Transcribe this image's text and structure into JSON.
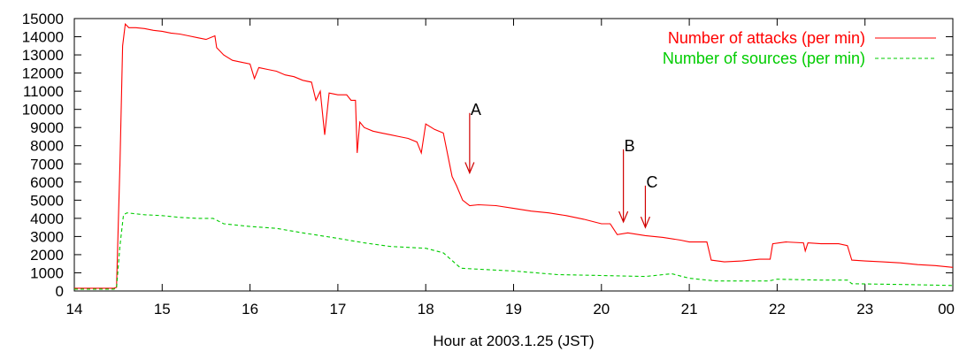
{
  "chart_data": {
    "type": "line",
    "xlabel": "Hour at 2003.1.25 (JST)",
    "x_ticks": [
      "14",
      "15",
      "16",
      "17",
      "18",
      "19",
      "20",
      "21",
      "22",
      "23",
      "00"
    ],
    "xlim": [
      14,
      24
    ],
    "ylim": [
      0,
      15000
    ],
    "y_ticks": [
      0,
      1000,
      2000,
      3000,
      4000,
      5000,
      6000,
      7000,
      8000,
      9000,
      10000,
      11000,
      12000,
      13000,
      14000,
      15000
    ],
    "grid": false,
    "legend_position": "top-right",
    "series": [
      {
        "name": "Number of attacks (per min)",
        "color": "#ff0000",
        "style": "solid",
        "points": [
          [
            14.0,
            150
          ],
          [
            14.45,
            150
          ],
          [
            14.48,
            200
          ],
          [
            14.52,
            7000
          ],
          [
            14.55,
            13500
          ],
          [
            14.58,
            14700
          ],
          [
            14.62,
            14500
          ],
          [
            14.7,
            14500
          ],
          [
            14.8,
            14450
          ],
          [
            14.9,
            14350
          ],
          [
            15.0,
            14300
          ],
          [
            15.1,
            14200
          ],
          [
            15.2,
            14150
          ],
          [
            15.3,
            14050
          ],
          [
            15.4,
            13950
          ],
          [
            15.5,
            13850
          ],
          [
            15.6,
            14050
          ],
          [
            15.62,
            13400
          ],
          [
            15.7,
            13000
          ],
          [
            15.8,
            12700
          ],
          [
            15.9,
            12600
          ],
          [
            16.0,
            12500
          ],
          [
            16.05,
            11700
          ],
          [
            16.1,
            12300
          ],
          [
            16.2,
            12200
          ],
          [
            16.3,
            12100
          ],
          [
            16.4,
            11900
          ],
          [
            16.5,
            11800
          ],
          [
            16.6,
            11600
          ],
          [
            16.7,
            11500
          ],
          [
            16.75,
            10500
          ],
          [
            16.8,
            11000
          ],
          [
            16.85,
            8600
          ],
          [
            16.9,
            10900
          ],
          [
            17.0,
            10800
          ],
          [
            17.1,
            10800
          ],
          [
            17.15,
            10500
          ],
          [
            17.2,
            10500
          ],
          [
            17.22,
            7600
          ],
          [
            17.25,
            9300
          ],
          [
            17.3,
            9000
          ],
          [
            17.4,
            8800
          ],
          [
            17.5,
            8700
          ],
          [
            17.6,
            8600
          ],
          [
            17.7,
            8500
          ],
          [
            17.8,
            8400
          ],
          [
            17.9,
            8200
          ],
          [
            17.95,
            7600
          ],
          [
            18.0,
            9200
          ],
          [
            18.1,
            8900
          ],
          [
            18.2,
            8700
          ],
          [
            18.3,
            6300
          ],
          [
            18.35,
            5800
          ],
          [
            18.42,
            5000
          ],
          [
            18.5,
            4700
          ],
          [
            18.6,
            4750
          ],
          [
            18.8,
            4700
          ],
          [
            19.0,
            4550
          ],
          [
            19.2,
            4400
          ],
          [
            19.4,
            4300
          ],
          [
            19.6,
            4150
          ],
          [
            19.8,
            3950
          ],
          [
            20.0,
            3700
          ],
          [
            20.1,
            3700
          ],
          [
            20.18,
            3100
          ],
          [
            20.3,
            3200
          ],
          [
            20.5,
            3050
          ],
          [
            20.7,
            2950
          ],
          [
            20.9,
            2800
          ],
          [
            21.0,
            2700
          ],
          [
            21.2,
            2700
          ],
          [
            21.25,
            1700
          ],
          [
            21.4,
            1600
          ],
          [
            21.6,
            1650
          ],
          [
            21.8,
            1750
          ],
          [
            21.92,
            1750
          ],
          [
            21.95,
            2600
          ],
          [
            22.1,
            2700
          ],
          [
            22.3,
            2650
          ],
          [
            22.32,
            2200
          ],
          [
            22.35,
            2650
          ],
          [
            22.5,
            2600
          ],
          [
            22.7,
            2600
          ],
          [
            22.8,
            2500
          ],
          [
            22.85,
            1700
          ],
          [
            23.0,
            1650
          ],
          [
            23.2,
            1600
          ],
          [
            23.4,
            1550
          ],
          [
            23.6,
            1450
          ],
          [
            23.8,
            1400
          ],
          [
            24.0,
            1300
          ]
        ]
      },
      {
        "name": "Number of sources (per min)",
        "color": "#00cc00",
        "style": "dashed",
        "points": [
          [
            14.0,
            100
          ],
          [
            14.45,
            100
          ],
          [
            14.48,
            150
          ],
          [
            14.52,
            2500
          ],
          [
            14.56,
            4200
          ],
          [
            14.6,
            4300
          ],
          [
            14.8,
            4200
          ],
          [
            15.0,
            4150
          ],
          [
            15.2,
            4050
          ],
          [
            15.4,
            4000
          ],
          [
            15.58,
            4000
          ],
          [
            15.7,
            3700
          ],
          [
            16.0,
            3550
          ],
          [
            16.3,
            3450
          ],
          [
            16.6,
            3200
          ],
          [
            17.0,
            2900
          ],
          [
            17.3,
            2650
          ],
          [
            17.6,
            2450
          ],
          [
            18.0,
            2350
          ],
          [
            18.2,
            2100
          ],
          [
            18.4,
            1250
          ],
          [
            18.6,
            1200
          ],
          [
            19.0,
            1100
          ],
          [
            19.5,
            900
          ],
          [
            20.0,
            850
          ],
          [
            20.5,
            800
          ],
          [
            20.8,
            950
          ],
          [
            21.0,
            700
          ],
          [
            21.3,
            550
          ],
          [
            21.9,
            550
          ],
          [
            22.0,
            650
          ],
          [
            22.5,
            600
          ],
          [
            22.8,
            600
          ],
          [
            22.85,
            400
          ],
          [
            23.5,
            350
          ],
          [
            24.0,
            300
          ]
        ]
      }
    ],
    "annotations": [
      {
        "label": "A",
        "x": 18.5,
        "y_top": 9800,
        "y_tip": 6500
      },
      {
        "label": "B",
        "x": 20.25,
        "y_top": 7800,
        "y_tip": 3800
      },
      {
        "label": "C",
        "x": 20.5,
        "y_top": 5800,
        "y_tip": 3500
      }
    ]
  }
}
